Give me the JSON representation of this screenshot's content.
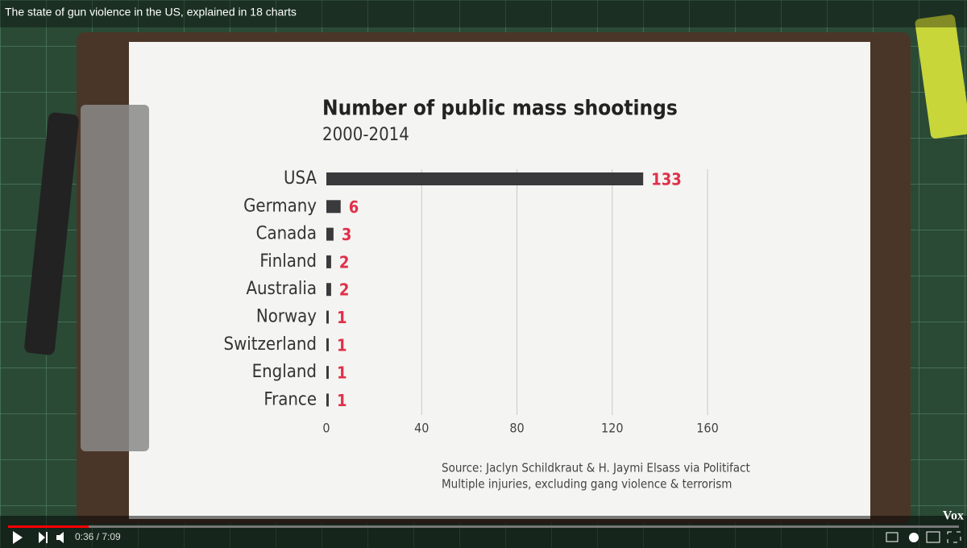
{
  "video": {
    "title": "The state of gun violence in the US, explained in 18 charts",
    "time": "0:36 / 7:09",
    "brand": "Vox"
  },
  "chart_data": {
    "type": "bar",
    "orientation": "horizontal",
    "title": "Number of public mass shootings",
    "subtitle": "2000-2014",
    "categories": [
      "USA",
      "Germany",
      "Canada",
      "Finland",
      "Australia",
      "Norway",
      "Switzerland",
      "England",
      "France"
    ],
    "values": [
      133,
      6,
      3,
      2,
      2,
      1,
      1,
      1,
      1
    ],
    "color": "#3a3a3c",
    "label_color": "#e0304a",
    "xlim": [
      0,
      160
    ],
    "xticks": [
      0,
      40,
      80,
      120,
      160
    ],
    "grid": true,
    "source": [
      "Source: Jaclyn Schildkraut & H. Jaymi Elsass via Politifact",
      "Multiple injuries, excluding gang violence & terrorism"
    ]
  }
}
